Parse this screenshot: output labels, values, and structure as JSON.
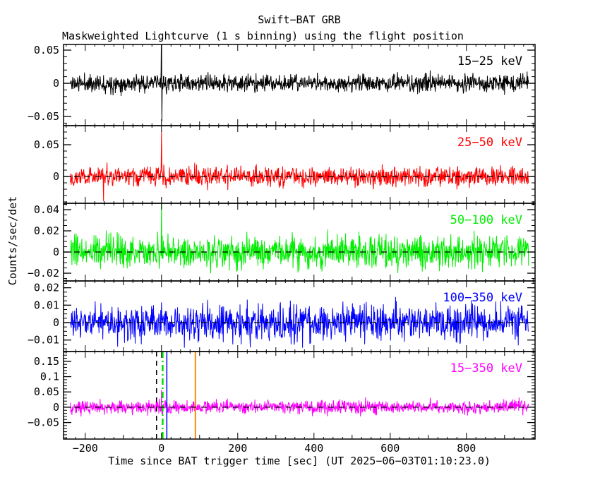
{
  "chart_data": {
    "type": "line",
    "title": "Swift−BAT GRB",
    "subtitle": "Maskweighted Lightcurve (1 s binning) using the flight position",
    "xlabel": "Time since BAT trigger time [sec] (UT 2025−06−03T01:10:23.0)",
    "ylabel": "Counts/sec/det",
    "trigger_utc": "2025−06−03T01:10:23.0",
    "binning": "1 s",
    "xlim": [
      -257,
      980
    ],
    "x_data_range": [
      -239,
      963
    ],
    "x_axis": {
      "major_step": 200,
      "mid_step": 100,
      "minor_step": 25,
      "tick_labels": [
        {
          "v": -200,
          "label": "−200"
        },
        {
          "v": 0,
          "label": "0"
        },
        {
          "v": 200,
          "label": "200"
        },
        {
          "v": 400,
          "label": "400"
        },
        {
          "v": 600,
          "label": "600"
        },
        {
          "v": 800,
          "label": "800"
        }
      ]
    },
    "grid": false,
    "legend_position": "in-panel-right",
    "panels": [
      {
        "band": "15−25 keV",
        "color": "#000000",
        "ylim": [
          -0.0638,
          0.0585
        ],
        "minor_step": 0.01,
        "yticks": [
          {
            "v": 0.05,
            "label": "0.05"
          },
          {
            "v": 0,
            "label": "0"
          },
          {
            "v": -0.05,
            "label": "−0.05"
          }
        ],
        "noise_sigma": 0.0065,
        "seed": 11,
        "spikes": [
          [
            -1,
            0.018
          ],
          [
            0,
            0.095
          ],
          [
            1,
            -0.057
          ]
        ]
      },
      {
        "band": "25−50 keV",
        "color": "#ff0000",
        "ylim": [
          -0.0422,
          0.08
        ],
        "minor_step": 0.01,
        "yticks": [
          {
            "v": 0.05,
            "label": "0.05"
          },
          {
            "v": 0,
            "label": "0"
          }
        ],
        "noise_sigma": 0.0075,
        "seed": 22,
        "spikes": [
          [
            -152,
            -0.039
          ],
          [
            0,
            0.071
          ],
          [
            1,
            0.015
          ]
        ]
      },
      {
        "band": "50−100 keV",
        "color": "#00ee00",
        "ylim": [
          -0.0273,
          0.046
        ],
        "minor_step": 0.005,
        "yticks": [
          {
            "v": 0.04,
            "label": "0.04"
          },
          {
            "v": 0.02,
            "label": "0.02"
          },
          {
            "v": 0,
            "label": "0"
          },
          {
            "v": -0.02,
            "label": "−0.02"
          }
        ],
        "noise_sigma": 0.0075,
        "seed": 33,
        "spikes": [
          [
            0,
            0.052
          ]
        ]
      },
      {
        "band": "100−350 keV",
        "color": "#0000ff",
        "ylim": [
          -0.0166,
          0.0239
        ],
        "minor_step": 0.0025,
        "yticks": [
          {
            "v": 0.02,
            "label": "0.02"
          },
          {
            "v": 0.01,
            "label": "0.01"
          },
          {
            "v": 0,
            "label": "0"
          },
          {
            "v": -0.01,
            "label": "−0.01"
          }
        ],
        "noise_sigma": 0.005,
        "seed": 44,
        "spikes": []
      },
      {
        "band": "15−350 keV",
        "color": "#ff00ff",
        "ylim": [
          -0.104,
          0.182
        ],
        "minor_step": 0.01,
        "yticks": [
          {
            "v": 0.15,
            "label": "0.15"
          },
          {
            "v": 0.1,
            "label": "0.1"
          },
          {
            "v": 0.05,
            "label": "0.05"
          },
          {
            "v": 0,
            "label": "0"
          },
          {
            "v": -0.05,
            "label": "−0.05"
          }
        ],
        "noise_sigma": 0.011,
        "seed": 55,
        "spikes": [
          [
            0,
            0.057
          ],
          [
            1,
            -0.021
          ]
        ]
      }
    ],
    "zero_line": {
      "color": "#000000",
      "style": "dashed"
    },
    "vlines_bottom_panel": [
      {
        "t": -13,
        "color": "#000000",
        "style": "dashed",
        "width": 1.5
      },
      {
        "t": 3,
        "color": "#00dd00",
        "style": "dashdot",
        "width": 2.5
      },
      {
        "t": 14,
        "color": "#0000ff",
        "style": "solid",
        "width": 1.5
      },
      {
        "t": 89,
        "color": "#ff8c00",
        "style": "solid",
        "width": 2
      }
    ]
  }
}
